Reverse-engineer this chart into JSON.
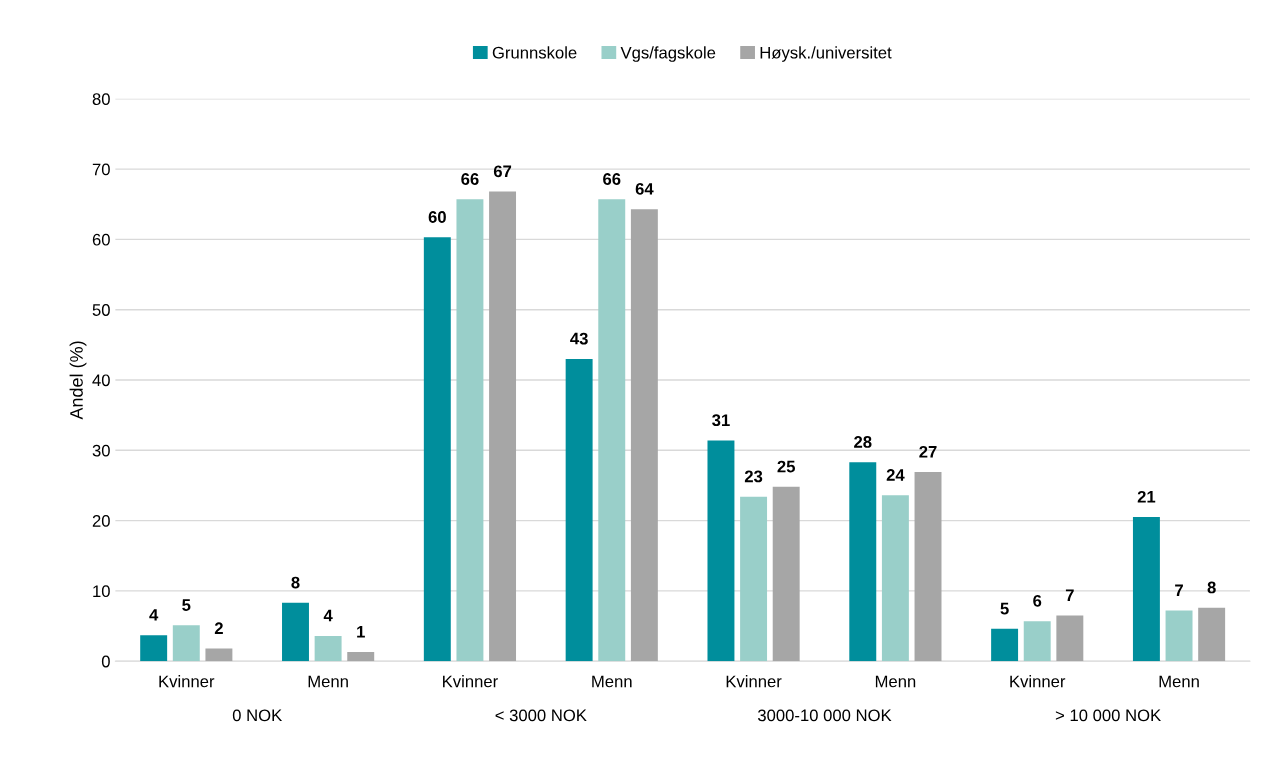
{
  "chart_data": {
    "type": "bar",
    "ylabel": "Andel (%)",
    "categories": [
      "Kvinner",
      "Menn",
      "Kvinner",
      "Menn",
      "Kvinner",
      "Menn",
      "Kvinner",
      "Menn"
    ],
    "series": [
      {
        "name": "Grunnskole",
        "color": "#008e9c",
        "values": [
          3.7,
          8.3,
          60.3,
          43.0,
          31.4,
          28.3,
          4.6,
          20.5
        ],
        "value_labels": [
          "4",
          "8",
          "60",
          "43",
          "31",
          "28",
          "5",
          "21"
        ]
      },
      {
        "name": "Vgs/fagskole",
        "color": "#99cfc9",
        "values": [
          5.1,
          3.6,
          65.7,
          65.7,
          23.4,
          23.6,
          5.7,
          7.2
        ],
        "value_labels": [
          "5",
          "4",
          "66",
          "66",
          "23",
          "24",
          "6",
          "7"
        ]
      },
      {
        "name": "Høysk./universitet",
        "color": "#a6a6a6",
        "values": [
          1.8,
          1.3,
          66.8,
          64.3,
          24.8,
          26.9,
          6.5,
          7.6
        ],
        "value_labels": [
          "2",
          "1",
          "67",
          "64",
          "25",
          "27",
          "7",
          "8"
        ]
      }
    ],
    "annotations": [
      "0 NOK",
      "< 3000 NOK",
      "3000-10 000 NOK",
      "> 10 000 NOK"
    ],
    "ylim": [
      0,
      80
    ],
    "yticks": [
      0,
      10,
      20,
      30,
      40,
      50,
      60,
      70,
      80
    ],
    "grid": "y",
    "legend": "top"
  }
}
